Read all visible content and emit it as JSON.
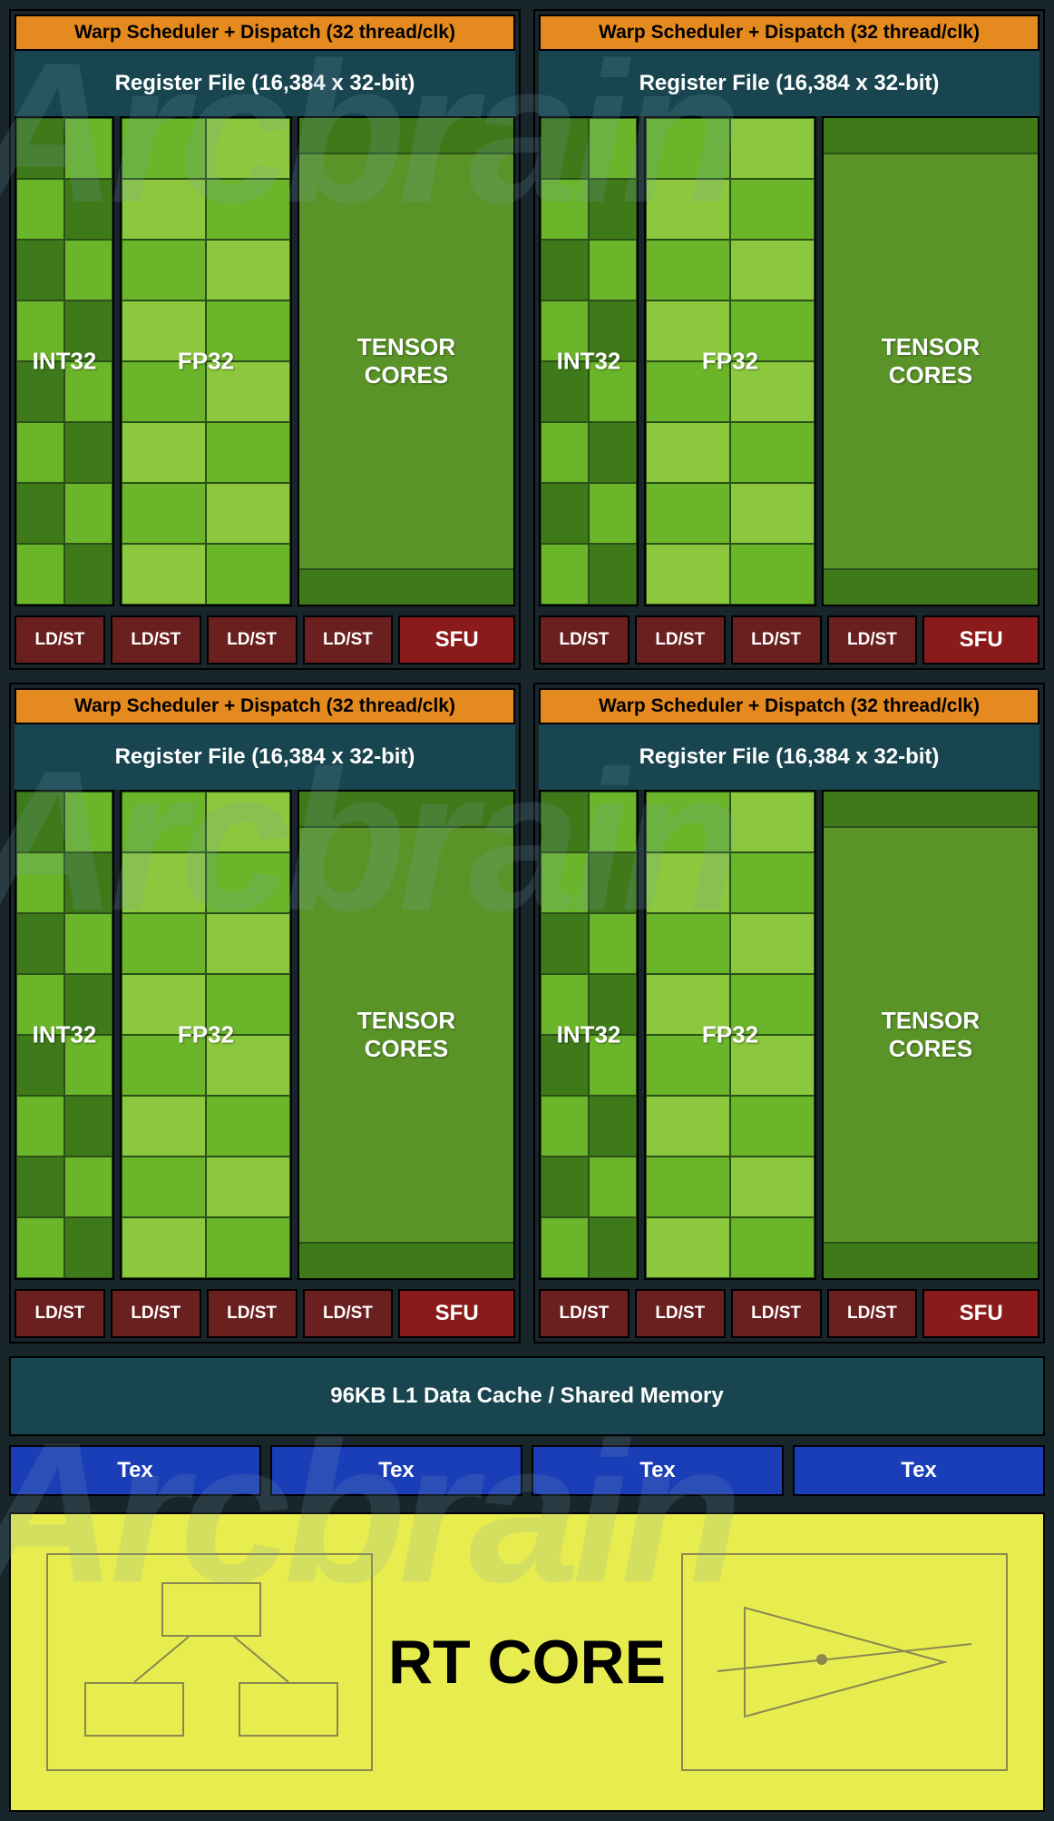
{
  "watermark_text": "Arcbrain",
  "sm_block": {
    "warp_label": "Warp Scheduler + Dispatch (32 thread/clk)",
    "reg_label": "Register File (16,384 x 32-bit)",
    "int32_label": "INT32",
    "fp32_label": "FP32",
    "tensor_label_l1": "TENSOR",
    "tensor_label_l2": "CORES",
    "ldst_label": "LD/ST",
    "sfu_label": "SFU",
    "warp_bg": "#e58a1f",
    "warp_fg": "#000000",
    "reg_bg": "#18454f",
    "ldst_bg": "#6b2020",
    "sfu_bg": "#8b1a1a",
    "int32_rows": 8,
    "int32_cols": 2,
    "fp32_rows": 8,
    "fp32_cols": 2,
    "int32_colors": [
      "#3e7a1a",
      "#6bb52a",
      "#3e7a1a",
      "#6bb52a",
      "#3e7a1a",
      "#6bb52a",
      "#3e7a1a",
      "#6bb52a",
      "#6bb52a",
      "#3e7a1a",
      "#6bb52a",
      "#3e7a1a",
      "#6bb52a",
      "#3e7a1a",
      "#6bb52a",
      "#3e7a1a"
    ],
    "fp32_colors": [
      "#6bb52a",
      "#8bc83e",
      "#6bb52a",
      "#8bc83e",
      "#6bb52a",
      "#8bc83e",
      "#6bb52a",
      "#8bc83e",
      "#8bc83e",
      "#6bb52a",
      "#8bc83e",
      "#6bb52a",
      "#8bc83e",
      "#6bb52a",
      "#8bc83e",
      "#6bb52a"
    ],
    "ldst_count": 4
  },
  "cache_label": "96KB L1 Data Cache / Shared Memory",
  "cache_bg": "#18454f",
  "tex_label": "Tex",
  "tex_bg": "#1a3db8",
  "tex_count": 4,
  "rtcore": {
    "label": "RT CORE",
    "bg": "#e8ed4f",
    "box_border": "#888850"
  },
  "bg": "#18252b"
}
